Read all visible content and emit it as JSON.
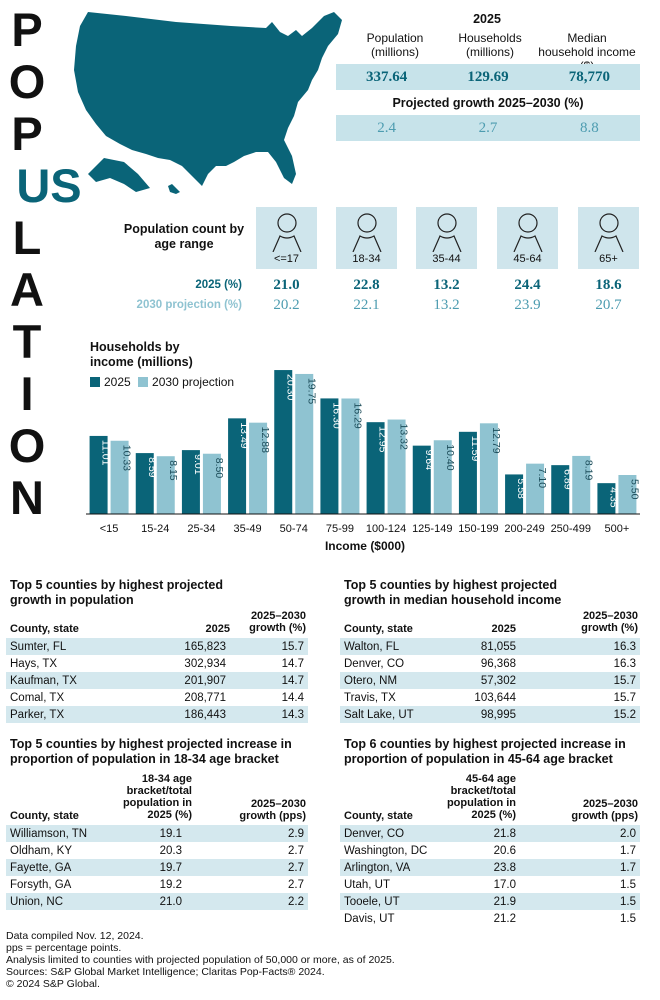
{
  "title_letters": [
    "P",
    "O",
    "P",
    "U",
    "S",
    "L",
    "A",
    "T",
    "I",
    "O",
    "N"
  ],
  "colors": {
    "dark": "#0a6478",
    "light": "#8fc3d1",
    "band": "#c7e3ea"
  },
  "stats": {
    "year": "2025",
    "headers": [
      "Population (millions)",
      "Households (millions)",
      "Median household income ($)"
    ],
    "values_2025": [
      "337.64",
      "129.69",
      "78,770"
    ],
    "growth_title": "Projected growth 2025–2030 (%)",
    "growth_values": [
      "2.4",
      "2.7",
      "8.8"
    ]
  },
  "age": {
    "title": "Population count by age range",
    "ranges": [
      "<=17",
      "18-34",
      "35-44",
      "45-64",
      "65+"
    ],
    "row_2025_label": "2025 (%)",
    "row_2025": [
      "21.0",
      "22.8",
      "13.2",
      "24.4",
      "18.6"
    ],
    "row_2030_label": "2030 projection (%)",
    "row_2030": [
      "20.2",
      "22.1",
      "13.2",
      "23.9",
      "20.7"
    ]
  },
  "chart_data": {
    "type": "bar",
    "title": "Households by income (millions)",
    "xlabel": "Income ($000)",
    "ylabel": "",
    "ylim": [
      0,
      22
    ],
    "categories": [
      "<15",
      "15-24",
      "25-34",
      "35-49",
      "50-74",
      "75-99",
      "100-124",
      "125-149",
      "150-199",
      "200-249",
      "250-499",
      "500+"
    ],
    "series": [
      {
        "name": "2025",
        "color": "#0a6478",
        "values": [
          11.01,
          8.59,
          9.01,
          13.49,
          20.3,
          16.3,
          12.95,
          9.64,
          11.59,
          5.58,
          6.89,
          4.35
        ],
        "labels": [
          "11.01",
          "8.59",
          "9.01",
          "13.49",
          "20.30",
          "16.30",
          "12.95",
          "9.64",
          "11.59",
          "5.58",
          "6.89",
          "4.35"
        ]
      },
      {
        "name": "2030 projection",
        "color": "#8fc3d1",
        "values": [
          10.33,
          8.15,
          8.5,
          12.88,
          19.75,
          16.29,
          13.32,
          10.4,
          12.79,
          7.1,
          8.19,
          5.5
        ],
        "labels": [
          "10.33",
          "8.15",
          "8.50",
          "12.88",
          "19.75",
          "16.29",
          "13.32",
          "10.40",
          "12.79",
          "7.10",
          "8.19",
          "5.50"
        ]
      }
    ]
  },
  "tables": {
    "pop_growth": {
      "title": "Top 5 counties by highest projected growth in population",
      "h1": "County, state",
      "h2": "2025",
      "h3": "2025–2030 growth (%)",
      "rows": [
        [
          "Sumter, FL",
          "165,823",
          "15.7"
        ],
        [
          "Hays, TX",
          "302,934",
          "14.7"
        ],
        [
          "Kaufman, TX",
          "201,907",
          "14.7"
        ],
        [
          "Comal, TX",
          "208,771",
          "14.4"
        ],
        [
          "Parker, TX",
          "186,443",
          "14.3"
        ]
      ]
    },
    "income_growth": {
      "title": "Top 5 counties by highest projected growth in median household income",
      "h1": "County, state",
      "h2": "2025",
      "h3": "2025–2030 growth (%)",
      "rows": [
        [
          "Walton, FL",
          "81,055",
          "16.3"
        ],
        [
          "Denver, CO",
          "96,368",
          "16.3"
        ],
        [
          "Otero, NM",
          "57,302",
          "15.7"
        ],
        [
          "Travis, TX",
          "103,644",
          "15.7"
        ],
        [
          "Salt Lake, UT",
          "98,995",
          "15.2"
        ]
      ]
    },
    "age_18_34": {
      "title": "Top 5 counties by highest projected increase in proportion of population in 18-34 age bracket",
      "h1": "County, state",
      "h2": "18-34 age bracket/total population in 2025 (%)",
      "h3": "2025–2030 growth (pps)",
      "rows": [
        [
          "Williamson, TN",
          "19.1",
          "2.9"
        ],
        [
          "Oldham, KY",
          "20.3",
          "2.7"
        ],
        [
          "Fayette, GA",
          "19.7",
          "2.7"
        ],
        [
          "Forsyth, GA",
          "19.2",
          "2.7"
        ],
        [
          "Union, NC",
          "21.0",
          "2.2"
        ]
      ]
    },
    "age_45_64": {
      "title": "Top 6 counties by highest projected increase in proportion of population in 45-64 age bracket",
      "h1": "County, state",
      "h2": "45-64 age bracket/total population in 2025 (%)",
      "h3": "2025–2030 growth (pps)",
      "rows": [
        [
          "Denver, CO",
          "21.8",
          "2.0"
        ],
        [
          "Washington, DC",
          "20.6",
          "1.7"
        ],
        [
          "Arlington, VA",
          "23.8",
          "1.7"
        ],
        [
          "Utah, UT",
          "17.0",
          "1.5"
        ],
        [
          "Tooele, UT",
          "21.9",
          "1.5"
        ],
        [
          "Davis, UT",
          "21.2",
          "1.5"
        ]
      ]
    }
  },
  "footer": [
    "Data compiled Nov. 12, 2024.",
    "pps = percentage points.",
    "Analysis limited to counties with projected population of 50,000 or more, as of 2025.",
    "Sources: S&P Global Market Intelligence; Claritas Pop-Facts® 2024.",
    "© 2024 S&P Global."
  ]
}
